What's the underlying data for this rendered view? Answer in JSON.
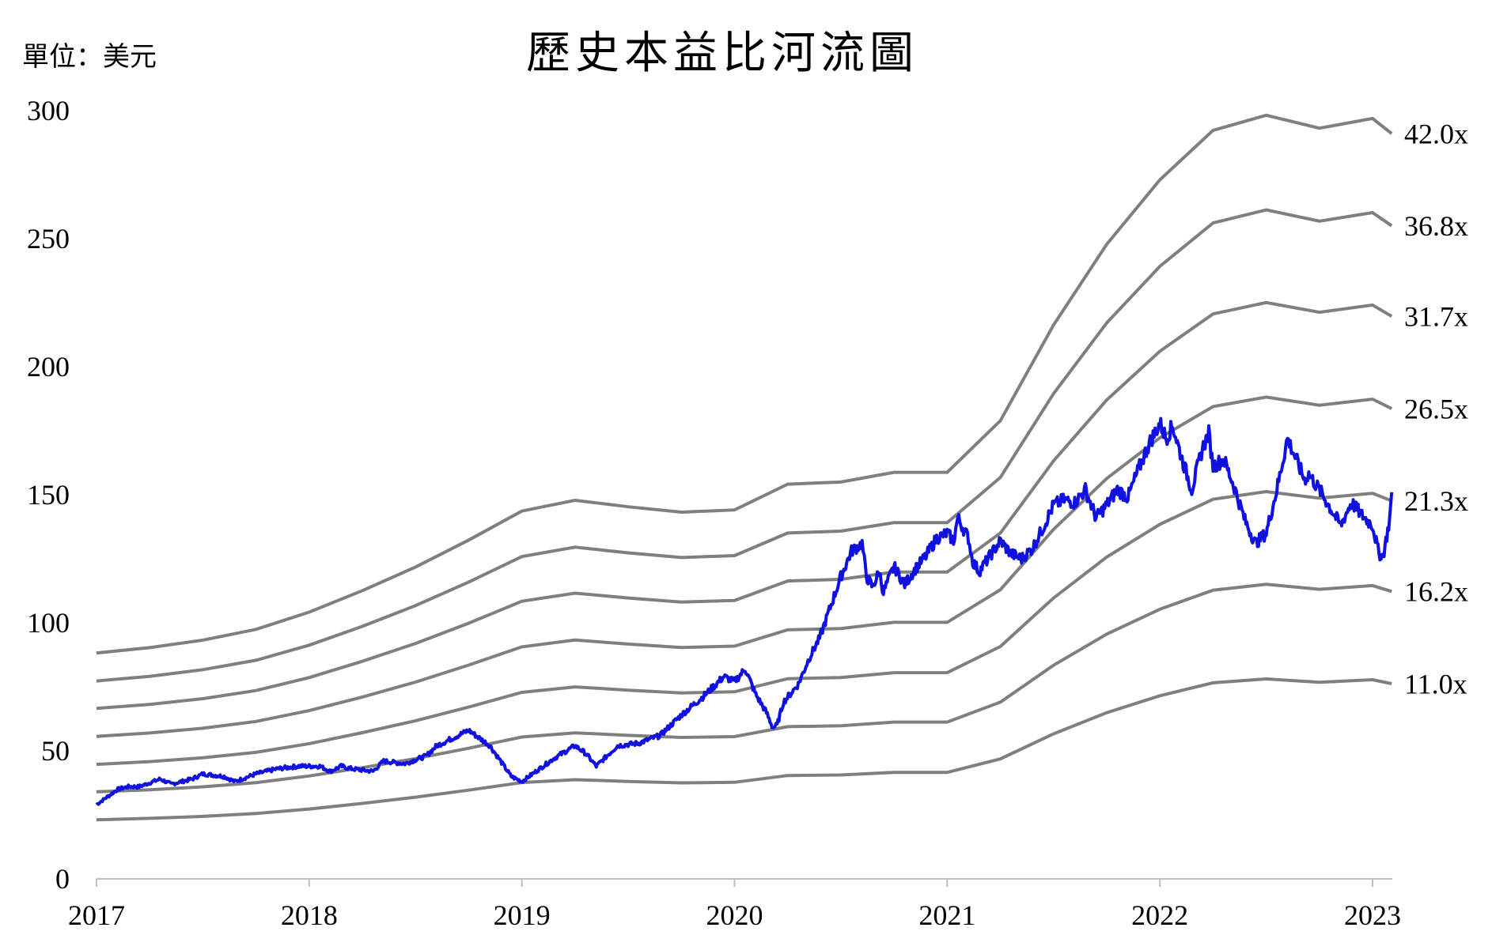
{
  "unit_label": "單位：美元",
  "chart_data": {
    "type": "line",
    "title": "歷史本益比河流圖",
    "xlabel": "",
    "ylabel": "",
    "xlim": [
      2017,
      2023.09
    ],
    "ylim": [
      0,
      300
    ],
    "x_ticks": [
      "2017",
      "2018",
      "2019",
      "2020",
      "2021",
      "2022",
      "2023"
    ],
    "y_ticks": [
      "0",
      "50",
      "100",
      "150",
      "200",
      "250",
      "300"
    ],
    "grid": false,
    "legend": "none",
    "colors": {
      "price": "#1010e0",
      "band": "#7f7f7f",
      "axis": "#bfbfbf"
    },
    "band_x": [
      2017.0,
      2017.25,
      2017.5,
      2017.75,
      2018.0,
      2018.25,
      2018.5,
      2018.75,
      2019.0,
      2019.25,
      2019.5,
      2019.75,
      2020.0,
      2020.25,
      2020.5,
      2020.75,
      2021.0,
      2021.25,
      2021.5,
      2021.75,
      2022.0,
      2022.25,
      2022.5,
      2022.75,
      2023.0,
      2023.09
    ],
    "band_eps": [
      2.1,
      2.15,
      2.22,
      2.32,
      2.48,
      2.68,
      2.9,
      3.15,
      3.42,
      3.52,
      3.46,
      3.41,
      3.43,
      3.67,
      3.69,
      3.78,
      3.78,
      4.26,
      5.15,
      5.9,
      6.5,
      6.96,
      7.1,
      6.98,
      7.07,
      6.93
    ],
    "series": [
      {
        "name": "42.0x",
        "multiple": 42.0
      },
      {
        "name": "36.8x",
        "multiple": 36.8
      },
      {
        "name": "31.7x",
        "multiple": 31.7
      },
      {
        "name": "26.5x",
        "multiple": 26.5
      },
      {
        "name": "21.3x",
        "multiple": 21.3
      },
      {
        "name": "16.2x",
        "multiple": 16.2
      },
      {
        "name": "11.0x",
        "multiple": 11.0
      }
    ],
    "price": {
      "x": [
        2017.0,
        2017.05,
        2017.1,
        2017.15,
        2017.2,
        2017.3,
        2017.35,
        2017.45,
        2017.5,
        2017.6,
        2017.65,
        2017.75,
        2017.85,
        2017.95,
        2018.05,
        2018.1,
        2018.15,
        2018.2,
        2018.3,
        2018.35,
        2018.45,
        2018.55,
        2018.6,
        2018.7,
        2018.75,
        2018.8,
        2018.85,
        2018.9,
        2018.95,
        2019.0,
        2019.05,
        2019.15,
        2019.25,
        2019.3,
        2019.35,
        2019.4,
        2019.45,
        2019.55,
        2019.65,
        2019.75,
        2019.85,
        2019.95,
        2020.0,
        2020.05,
        2020.1,
        2020.15,
        2020.18,
        2020.2,
        2020.23,
        2020.3,
        2020.35,
        2020.4,
        2020.45,
        2020.5,
        2020.55,
        2020.6,
        2020.62,
        2020.65,
        2020.68,
        2020.7,
        2020.75,
        2020.8,
        2020.85,
        2020.9,
        2020.95,
        2021.0,
        2021.03,
        2021.05,
        2021.1,
        2021.12,
        2021.15,
        2021.2,
        2021.25,
        2021.3,
        2021.35,
        2021.4,
        2021.45,
        2021.5,
        2021.55,
        2021.6,
        2021.65,
        2021.7,
        2021.75,
        2021.8,
        2021.85,
        2021.9,
        2021.95,
        2022.0,
        2022.03,
        2022.06,
        2022.1,
        2022.15,
        2022.2,
        2022.23,
        2022.25,
        2022.3,
        2022.35,
        2022.4,
        2022.45,
        2022.5,
        2022.55,
        2022.6,
        2022.65,
        2022.68,
        2022.7,
        2022.75,
        2022.8,
        2022.85,
        2022.9,
        2022.95,
        2023.0,
        2023.03,
        2023.05,
        2023.08,
        2023.09
      ],
      "y": [
        29,
        32,
        35,
        36,
        36,
        39,
        37,
        39,
        41,
        40,
        38,
        41,
        43,
        44,
        44,
        42,
        44,
        43,
        42,
        46,
        45,
        48,
        52,
        56,
        58,
        55,
        52,
        46,
        40,
        38,
        41,
        47,
        52,
        49,
        44,
        48,
        52,
        53,
        56,
        64,
        71,
        79,
        77,
        82,
        72,
        65,
        59,
        60,
        69,
        76,
        86,
        94,
        106,
        118,
        128,
        131,
        118,
        114,
        120,
        112,
        122,
        115,
        121,
        126,
        133,
        135,
        132,
        141,
        133,
        124,
        120,
        126,
        132,
        127,
        125,
        129,
        137,
        146,
        148,
        147,
        152,
        141,
        146,
        152,
        149,
        160,
        170,
        178,
        172,
        177,
        165,
        152,
        168,
        174,
        161,
        164,
        153,
        140,
        131,
        135,
        152,
        172,
        162,
        156,
        158,
        152,
        145,
        138,
        147,
        142,
        138,
        127,
        126,
        140,
        151
      ]
    }
  }
}
